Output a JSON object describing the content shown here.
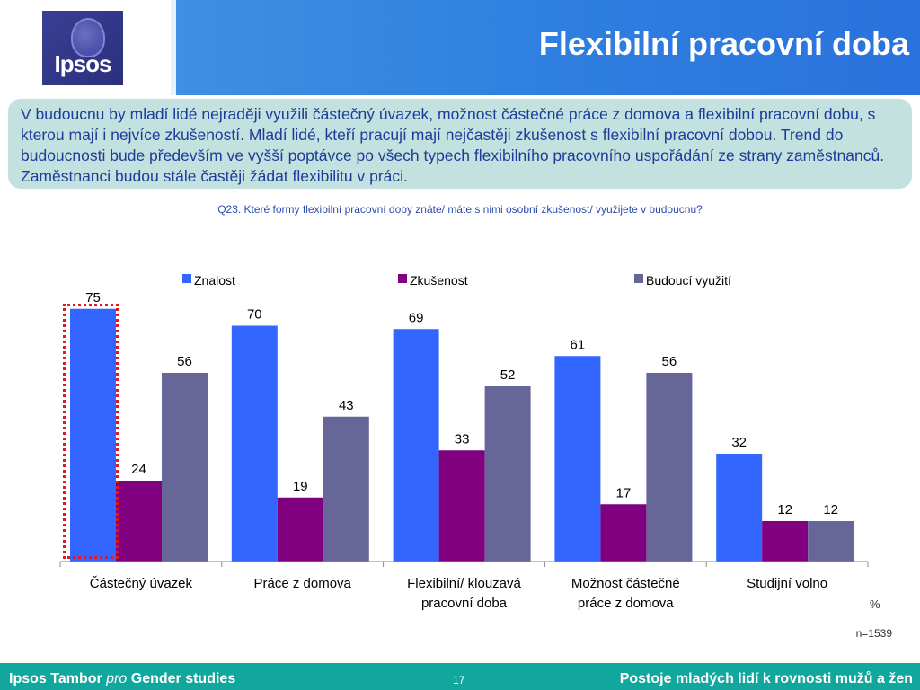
{
  "header": {
    "logo_text": "Ipsos",
    "title": "Flexibilní pracovní doba",
    "colors": {
      "band": "#2f7fe0",
      "logo": "#2a2f7e"
    }
  },
  "summary": {
    "text": "V budoucnu by mladí lidé nejraději využili částečný úvazek, možnost částečné práce z domova a flexibilní pracovní dobu, s kterou mají i nejvíce zkušeností. Mladí lidé, kteří pracují mají nejčastěji zkušenost s flexibilní pracovní dobou. Trend do budoucnosti bude především ve vyšší poptávce po všech typech flexibilního pracovního uspořádání ze strany zaměstnanců. Zaměstnanci budou stále častěji žádat flexibilitu v práci."
  },
  "question": "Q23. Které formy flexibilní pracovní doby znáte/ máte s nimi osobní zkušenost/ využijete v budoucnu?",
  "chart_data": {
    "type": "bar",
    "categories": [
      [
        "Částečný úvazek"
      ],
      [
        "Práce z domova"
      ],
      [
        "Flexibilní/ klouzavá",
        "pracovní doba"
      ],
      [
        "Možnost částečné",
        "práce z domova"
      ],
      [
        "Studijní volno"
      ]
    ],
    "series": [
      {
        "name": "Znalost",
        "color": "#3366ff",
        "values": [
          75,
          70,
          69,
          61,
          32
        ]
      },
      {
        "name": "Zkušenost",
        "color": "#800080",
        "values": [
          24,
          19,
          33,
          17,
          12
        ]
      },
      {
        "name": "Budoucí využití",
        "color": "#666699",
        "values": [
          56,
          43,
          52,
          56,
          12
        ]
      }
    ],
    "ylim": [
      0,
      80
    ],
    "legend_position": "top",
    "unit": "%",
    "highlight_category": "Částečný úvazek",
    "highlight_color": "#e0191e"
  },
  "base_note": "n=1539",
  "footer": {
    "left_bold_1": "Ipsos Tambor ",
    "left_italic": "pro",
    "left_bold_2": " Gender studies",
    "page": "17",
    "right": "Postoje mladých lidí k rovnosti mužů a žen"
  }
}
